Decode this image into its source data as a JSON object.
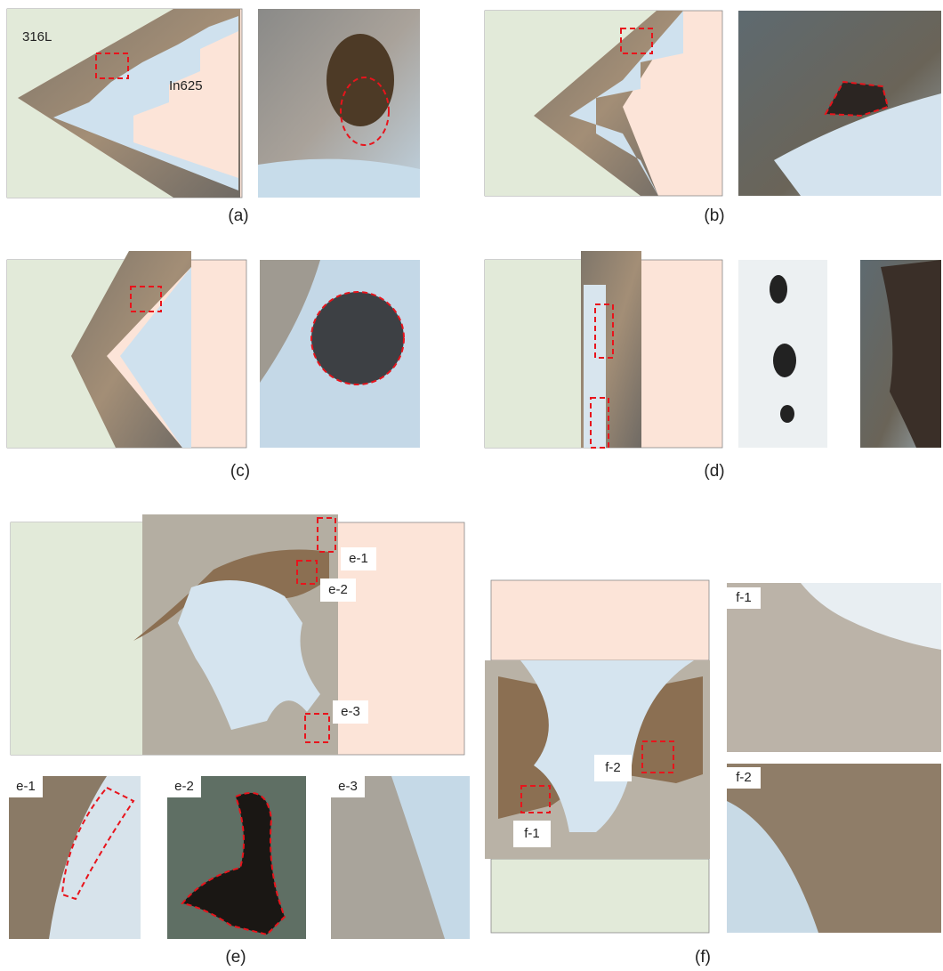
{
  "materials": {
    "left": "316L",
    "right": "In625"
  },
  "panels": [
    {
      "label": "(a)"
    },
    {
      "label": "(b)"
    },
    {
      "label": "(c)"
    },
    {
      "label": "(d)"
    },
    {
      "label": "(e)"
    },
    {
      "label": "(f)"
    }
  ],
  "insets": {
    "e": [
      "e-1",
      "e-2",
      "e-3"
    ],
    "f": [
      "f-1",
      "f-2"
    ]
  }
}
